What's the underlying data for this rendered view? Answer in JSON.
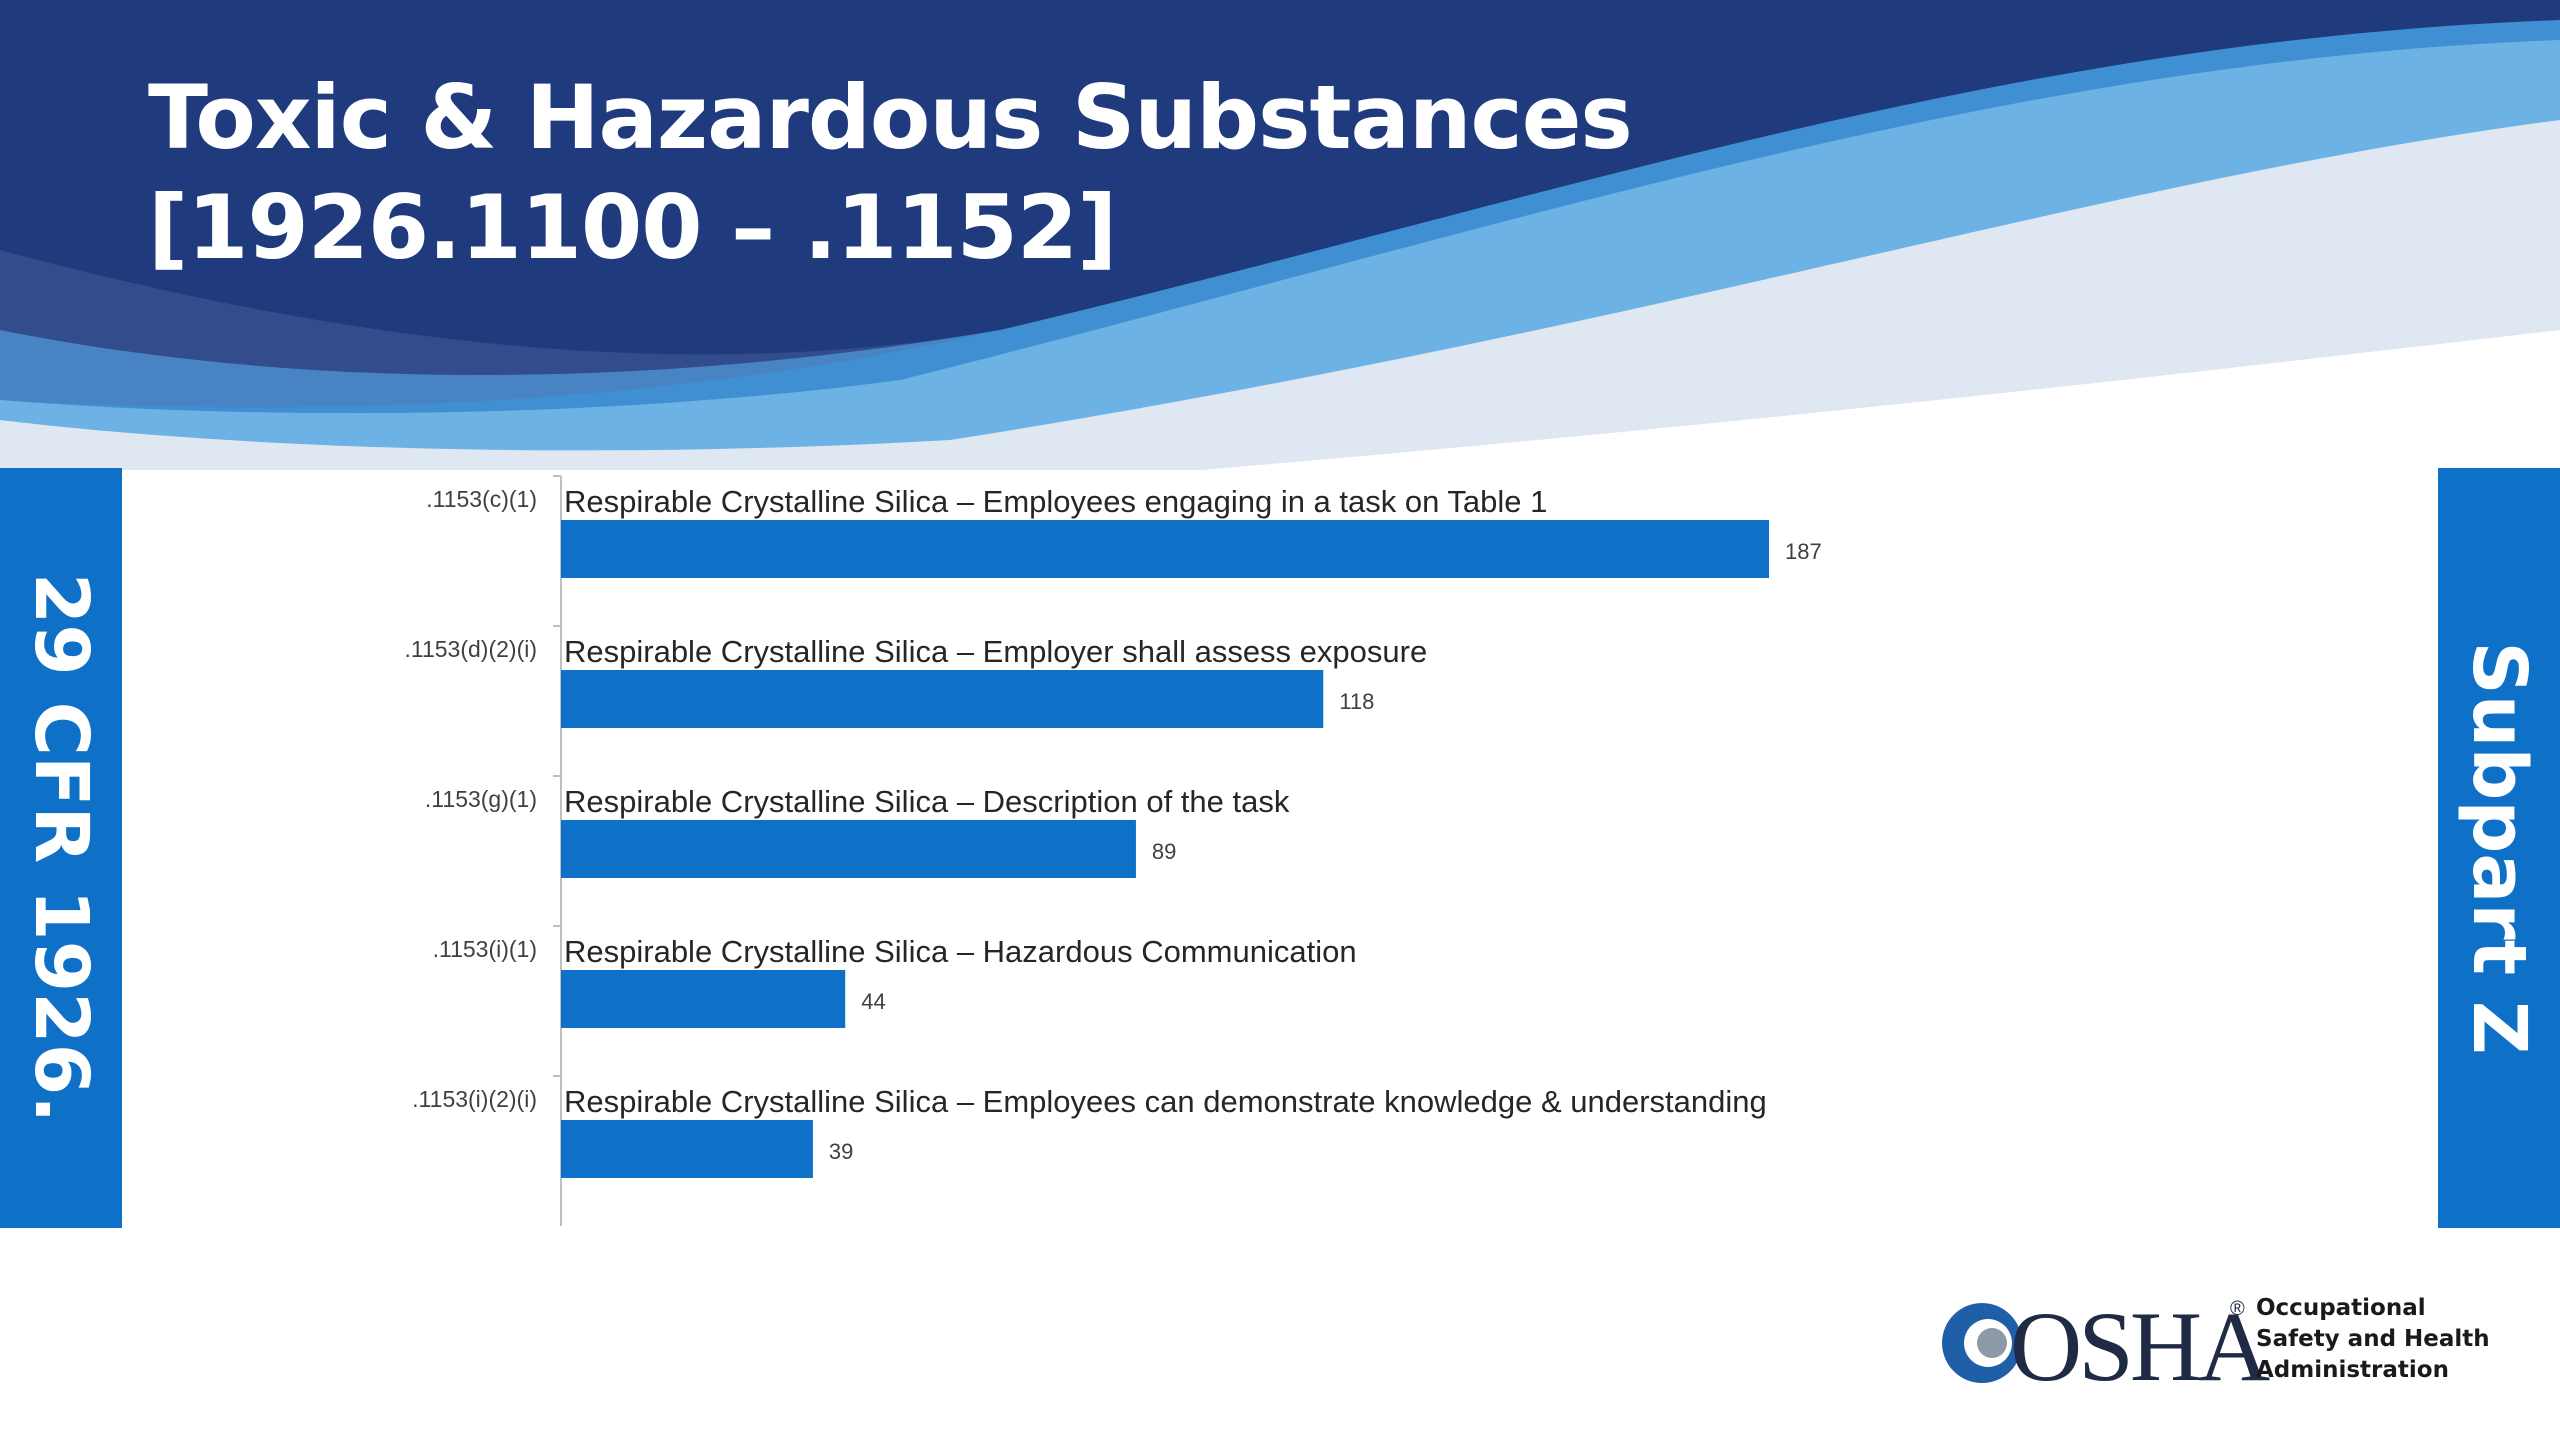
{
  "slide": {
    "title_line1": "Toxic & Hazardous Substances",
    "title_line2": "[1926.1100 – .1152]",
    "left_band": "29 CFR 1926.",
    "right_band": "Subpart Z"
  },
  "colors": {
    "header_dark": "#1f3b7d",
    "header_mid": "#3f8fd2",
    "header_light": "#6cb2e4",
    "header_pale": "#dfe7f2",
    "bar": "#0e71c7",
    "band": "#0e71c7"
  },
  "chart_data": {
    "type": "bar",
    "orientation": "horizontal",
    "categories": [
      ".1153(c)(1)",
      ".1153(d)(2)(i)",
      ".1153(g)(1)",
      ".1153(i)(1)",
      ".1153(i)(2)(i)"
    ],
    "descriptions": [
      [
        "Respirable Crystalline Silica – Employees engaging in a task on Table 1"
      ],
      [
        "Respirable Crystalline Silica – Employer shall assess exposure"
      ],
      [
        "Respirable Crystalline Silica – Description of the task"
      ],
      [
        "Respirable Crystalline Silica – Hazardous Communication"
      ],
      [
        "Respirable Crystalline Silica – Employees can demonstrate knowledge & understanding"
      ]
    ],
    "values": [
      187,
      118,
      89,
      44,
      39
    ],
    "xlim": [
      0,
      187
    ],
    "grid": false,
    "legend": "none"
  },
  "logo": {
    "name": "osha-logo",
    "wordmark": "OSHA",
    "registered": "®",
    "lines": [
      "Occupational",
      "Safety and Health",
      "Administration"
    ]
  }
}
